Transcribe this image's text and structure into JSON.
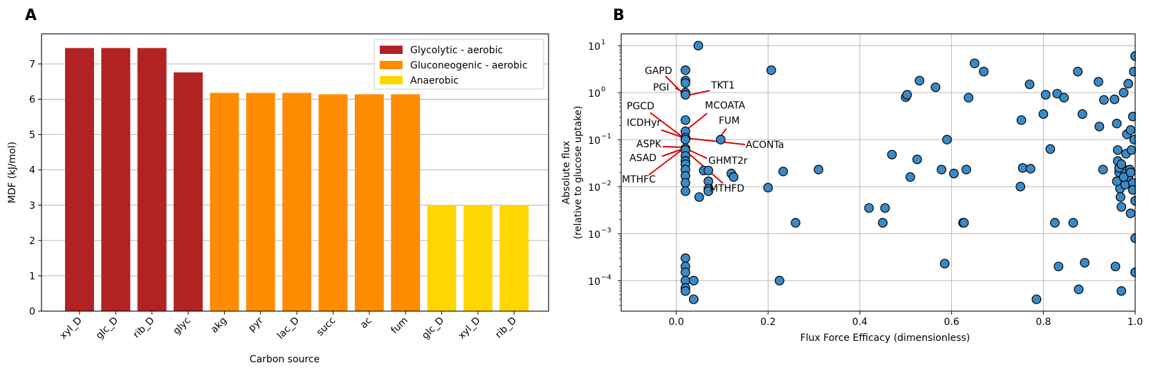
{
  "figure": {
    "panel_a_letter": "A",
    "panel_b_letter": "B"
  },
  "chart_data": [
    {
      "type": "bar",
      "title": "",
      "xlabel": "Carbon source",
      "ylabel": "MDF (kJ/mol)",
      "ylim": [
        0,
        7.85
      ],
      "yticks": [
        0,
        1,
        2,
        3,
        4,
        5,
        6,
        7
      ],
      "grid": "y",
      "legend_position": "top-right",
      "categories": [
        "xyl_D",
        "glc_D",
        "rib_D",
        "glyc",
        "akg",
        "pyr",
        "lac_D",
        "succ",
        "ac",
        "fum",
        "glc_D",
        "xyl_D",
        "rib_D"
      ],
      "values": [
        7.45,
        7.45,
        7.45,
        6.76,
        6.18,
        6.18,
        6.18,
        6.14,
        6.14,
        6.14,
        3.0,
        3.0,
        3.0
      ],
      "bar_groups": [
        0,
        0,
        0,
        0,
        1,
        1,
        1,
        1,
        1,
        1,
        2,
        2,
        2
      ],
      "series": [
        {
          "name": "Glycolytic - aerobic",
          "color": "#b22222"
        },
        {
          "name": "Gluconeogenic - aerobic",
          "color": "#ff8c00"
        },
        {
          "name": "Anaerobic",
          "color": "#ffd700"
        }
      ]
    },
    {
      "type": "scatter",
      "title": "",
      "xlabel": "Flux Force Efficacy (dimensionless)",
      "ylabel": "Absolute flux",
      "ylabel_line2": "(relative to glucose uptake)",
      "xlim": [
        -0.12,
        1.0
      ],
      "ylim_log10": [
        -4.65,
        1.25
      ],
      "yscale": "log",
      "xticks": [
        0.0,
        0.2,
        0.4,
        0.6,
        0.8,
        1.0
      ],
      "xtick_labels": [
        "0.0",
        "0.2",
        "0.4",
        "0.6",
        "0.8",
        "1.0"
      ],
      "ytick_exponents": [
        -4,
        -3,
        -2,
        -1,
        0,
        1
      ],
      "grid": "both",
      "marker_color": "#3a8ac7",
      "marker_edge": "#000000",
      "points": [
        [
          0.02,
          3.0
        ],
        [
          0.02,
          1.8
        ],
        [
          0.02,
          1.6
        ],
        [
          0.02,
          1.0
        ],
        [
          0.02,
          0.9
        ],
        [
          0.02,
          0.26
        ],
        [
          0.02,
          0.15
        ],
        [
          0.02,
          0.11
        ],
        [
          0.02,
          0.1
        ],
        [
          0.02,
          0.065
        ],
        [
          0.02,
          0.06
        ],
        [
          0.02,
          0.045
        ],
        [
          0.02,
          0.035
        ],
        [
          0.02,
          0.03
        ],
        [
          0.02,
          0.023
        ],
        [
          0.02,
          0.017
        ],
        [
          0.02,
          0.012
        ],
        [
          0.02,
          0.008
        ],
        [
          0.02,
          0.0003
        ],
        [
          0.02,
          0.0002
        ],
        [
          0.02,
          0.00015
        ],
        [
          0.02,
          0.0001
        ],
        [
          0.02,
          7e-05
        ],
        [
          0.02,
          6e-05
        ],
        [
          0.048,
          10.0
        ],
        [
          0.05,
          0.006
        ],
        [
          0.06,
          0.022
        ],
        [
          0.07,
          0.022
        ],
        [
          0.07,
          0.013
        ],
        [
          0.07,
          0.009
        ],
        [
          0.07,
          0.008
        ],
        [
          0.038,
          0.0001
        ],
        [
          0.038,
          4e-05
        ],
        [
          0.097,
          0.1
        ],
        [
          0.12,
          0.019
        ],
        [
          0.125,
          0.016
        ],
        [
          0.2,
          0.0095
        ],
        [
          0.207,
          3.0
        ],
        [
          0.225,
          0.0001
        ],
        [
          0.233,
          0.021
        ],
        [
          0.26,
          0.0017
        ],
        [
          0.31,
          0.023
        ],
        [
          0.42,
          0.0035
        ],
        [
          0.45,
          0.0017
        ],
        [
          0.455,
          0.0035
        ],
        [
          0.47,
          0.048
        ],
        [
          0.5,
          0.8
        ],
        [
          0.503,
          0.9
        ],
        [
          0.51,
          0.016
        ],
        [
          0.525,
          0.038
        ],
        [
          0.53,
          1.8
        ],
        [
          0.565,
          1.3
        ],
        [
          0.578,
          0.023
        ],
        [
          0.585,
          0.00023
        ],
        [
          0.59,
          0.1
        ],
        [
          0.605,
          0.019
        ],
        [
          0.625,
          0.0017
        ],
        [
          0.627,
          0.0017
        ],
        [
          0.632,
          0.023
        ],
        [
          0.637,
          0.78
        ],
        [
          0.65,
          4.2
        ],
        [
          0.67,
          2.8
        ],
        [
          0.75,
          0.01
        ],
        [
          0.752,
          0.26
        ],
        [
          0.755,
          0.025
        ],
        [
          0.77,
          1.5
        ],
        [
          0.772,
          0.024
        ],
        [
          0.785,
          4e-05
        ],
        [
          0.8,
          0.35
        ],
        [
          0.805,
          0.9
        ],
        [
          0.815,
          0.063
        ],
        [
          0.825,
          0.0017
        ],
        [
          0.83,
          0.95
        ],
        [
          0.833,
          0.0002
        ],
        [
          0.845,
          0.78
        ],
        [
          0.865,
          0.0017
        ],
        [
          0.875,
          2.8
        ],
        [
          0.877,
          6.5e-05
        ],
        [
          0.885,
          0.35
        ],
        [
          0.89,
          0.00024
        ],
        [
          0.92,
          1.7
        ],
        [
          0.922,
          0.19
        ],
        [
          0.93,
          0.023
        ],
        [
          0.932,
          0.7
        ],
        [
          0.955,
          0.72
        ],
        [
          0.957,
          0.0002
        ],
        [
          0.96,
          0.22
        ],
        [
          0.962,
          0.06
        ],
        [
          0.962,
          0.035
        ],
        [
          0.965,
          0.02
        ],
        [
          0.965,
          0.013
        ],
        [
          0.967,
          0.009
        ],
        [
          0.968,
          0.006
        ],
        [
          0.97,
          0.0037
        ],
        [
          0.97,
          6e-05
        ],
        [
          0.975,
          1.0
        ],
        [
          0.975,
          0.023
        ],
        [
          0.978,
          0.011
        ],
        [
          0.98,
          0.05
        ],
        [
          0.982,
          0.13
        ],
        [
          0.985,
          1.55
        ],
        [
          0.985,
          0.016
        ],
        [
          0.988,
          0.023
        ],
        [
          0.99,
          0.16
        ],
        [
          0.99,
          0.0027
        ],
        [
          0.992,
          0.06
        ],
        [
          0.995,
          0.31
        ],
        [
          0.995,
          0.012
        ],
        [
          0.997,
          2.8
        ],
        [
          0.998,
          0.1
        ],
        [
          1.0,
          6.0
        ],
        [
          1.0,
          0.005
        ],
        [
          1.0,
          0.0008
        ],
        [
          1.0,
          0.00015
        ],
        [
          0.96,
          0.013
        ],
        [
          0.965,
          0.025
        ],
        [
          0.975,
          0.016
        ],
        [
          0.99,
          0.02
        ],
        [
          0.995,
          0.0085
        ],
        [
          0.97,
          0.03
        ]
      ],
      "annotations": [
        {
          "text": "GAPD"
        },
        {
          "text": "PGI"
        },
        {
          "text": "TKT1"
        },
        {
          "text": "PGCD"
        },
        {
          "text": "MCOATA"
        },
        {
          "text": "FUM"
        },
        {
          "text": "ICDHyr"
        },
        {
          "text": "ACONTa"
        },
        {
          "text": "ASPK"
        },
        {
          "text": "ASAD"
        },
        {
          "text": "GHMT2r"
        },
        {
          "text": "MTHFC"
        },
        {
          "text": "MTHFD"
        }
      ]
    }
  ]
}
